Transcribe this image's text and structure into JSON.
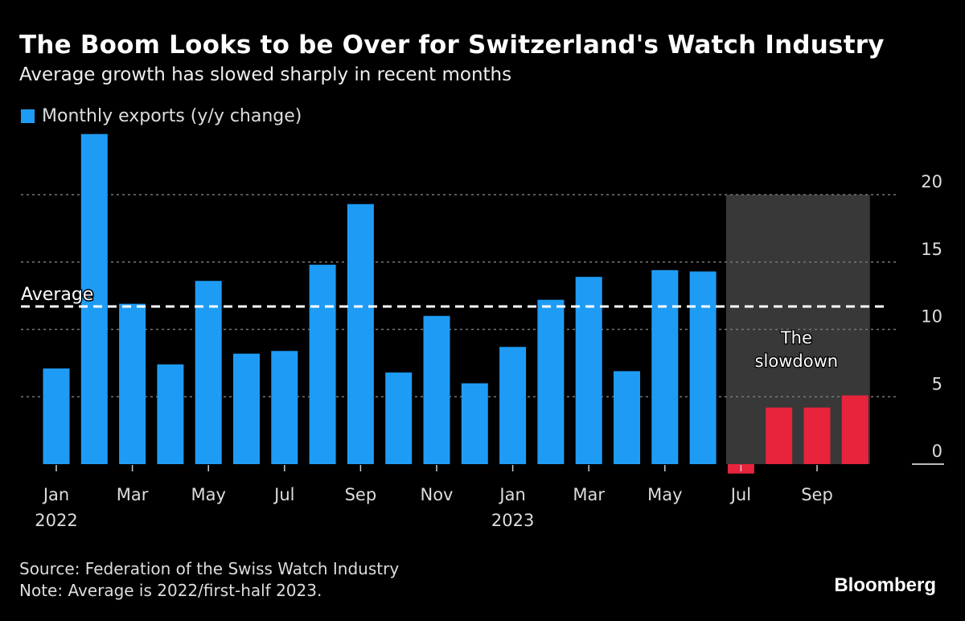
{
  "header": {
    "title": "The Boom Looks to be Over for Switzerland's Watch Industry",
    "subtitle": "Average growth has slowed sharply in recent months"
  },
  "colors": {
    "background": "#000000",
    "bar_primary": "#1e9cf5",
    "bar_slowdown": "#e8233c",
    "shade": "#383838",
    "grid": "#777777",
    "average_line": "#ffffff"
  },
  "chart_data": {
    "type": "bar",
    "title": "The Boom Looks to be Over for Switzerland's Watch Industry",
    "subtitle": "Average growth has slowed sharply in recent months",
    "xlabel": "",
    "ylabel": "",
    "ylim": [
      -1,
      25
    ],
    "yticks": [
      0,
      5,
      10,
      15,
      20
    ],
    "y_axis_side": "right",
    "grid": true,
    "legend": [
      {
        "label": "Monthly exports (y/y change)",
        "color": "#1e9cf5"
      }
    ],
    "legend_position": "top-left",
    "categories": [
      "Jan 2022",
      "Feb 2022",
      "Mar 2022",
      "Apr 2022",
      "May 2022",
      "Jun 2022",
      "Jul 2022",
      "Aug 2022",
      "Sep 2022",
      "Oct 2022",
      "Nov 2022",
      "Dec 2022",
      "Jan 2023",
      "Feb 2023",
      "Mar 2023",
      "Apr 2023",
      "May 2023",
      "Jun 2023",
      "Jul 2023",
      "Aug 2023",
      "Sep 2023",
      "Oct 2023"
    ],
    "series": [
      {
        "name": "Monthly exports (y/y change)",
        "values": [
          7.1,
          24.5,
          11.9,
          7.4,
          13.6,
          8.2,
          8.4,
          14.8,
          19.3,
          6.8,
          11.0,
          6.0,
          8.7,
          12.2,
          13.9,
          6.9,
          14.4,
          14.3,
          -0.7,
          4.2,
          4.2,
          5.1
        ],
        "highlight_from_index": 18
      }
    ],
    "xtick_labels": [
      {
        "index": 0,
        "label": "Jan",
        "year": "2022"
      },
      {
        "index": 2,
        "label": "Mar"
      },
      {
        "index": 4,
        "label": "May"
      },
      {
        "index": 6,
        "label": "Jul"
      },
      {
        "index": 8,
        "label": "Sep"
      },
      {
        "index": 10,
        "label": "Nov"
      },
      {
        "index": 12,
        "label": "Jan",
        "year": "2023"
      },
      {
        "index": 14,
        "label": "Mar"
      },
      {
        "index": 16,
        "label": "May"
      },
      {
        "index": 18,
        "label": "Jul"
      },
      {
        "index": 20,
        "label": "Sep"
      }
    ],
    "average": {
      "label": "Average",
      "value": 11.7
    },
    "shaded_region": {
      "from_index": 18,
      "to_index": 21,
      "top_value": 20,
      "label_line1": "The",
      "label_line2": "slowdown"
    }
  },
  "footer": {
    "source": "Source: Federation of the Swiss Watch Industry",
    "note": "Note: Average is 2022/first-half 2023.",
    "brand": "Bloomberg"
  }
}
